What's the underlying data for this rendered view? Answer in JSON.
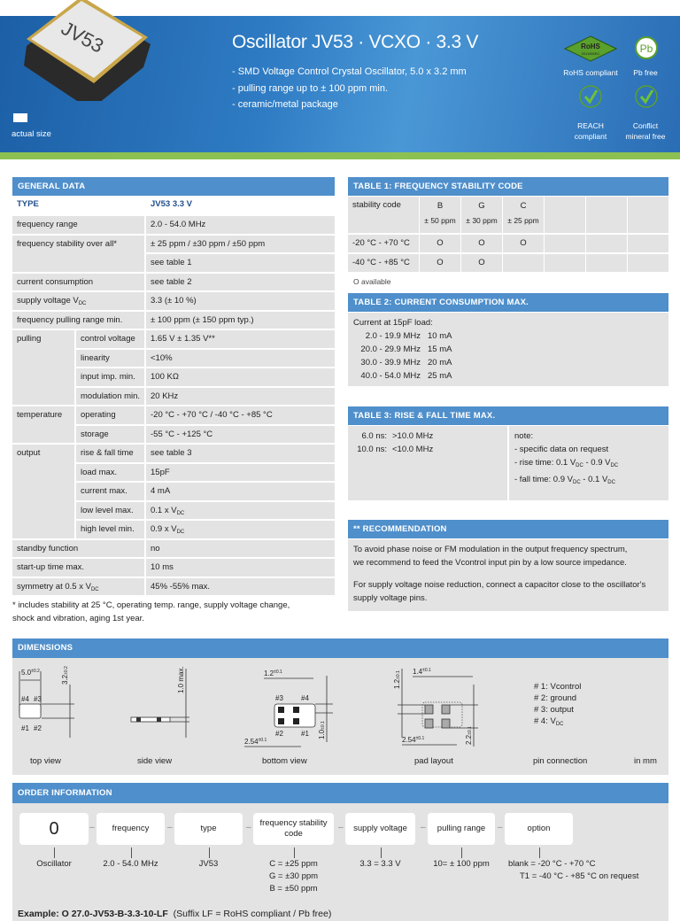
{
  "header": {
    "chip_marking": "JV53",
    "actual_size_label": "actual size",
    "title": "Oscillator JV53 · VCXO · 3.3 V",
    "bullets": [
      "- SMD Voltage Control Crystal Oscillator, 5.0 x 3.2 mm",
      "- pulling range up to ± 100 ppm min.",
      "- ceramic/metal package"
    ],
    "badges": {
      "rohs_logo_text": "RoHS",
      "rohs_logo_sub": "2011/65/EC",
      "rohs_label": "RoHS compliant",
      "pb_logo_text": "Pb",
      "pb_label": "Pb free",
      "reach_label_1": "REACH",
      "reach_label_2": "compliant",
      "conflict_label_1": "Conflict",
      "conflict_label_2": "mineral free"
    },
    "colors": {
      "banner": "#2f7cc4",
      "accent_bar": "#8cc152",
      "section_header": "#4f8fcb",
      "badge_green": "#5aa02c"
    }
  },
  "general": {
    "heading": "GENERAL DATA",
    "type_label": "TYPE",
    "type_value": "JV53 3.3 V",
    "rows": [
      {
        "label": "frequency range",
        "value": "2.0 - 54.0 MHz"
      },
      {
        "label": "frequency stability over all*",
        "value": "± 25 ppm / ±30 ppm / ±50 ppm"
      },
      {
        "label": "",
        "value": "see table 1"
      },
      {
        "label": "current consumption",
        "value": "see table 2"
      },
      {
        "label": "supply voltage V{DC}",
        "value": "3.3 (± 10 %)"
      },
      {
        "label": "frequency pulling range min.",
        "value": "± 100 ppm (± 150 ppm typ.)"
      }
    ],
    "groups": [
      {
        "label": "pulling",
        "rows": [
          {
            "sub": "control voltage",
            "value": "1.65 V ± 1.35 V**"
          },
          {
            "sub": "linearity",
            "value": "<10%"
          },
          {
            "sub": "input imp. min.",
            "value": "100 KΩ"
          },
          {
            "sub": "modulation min.",
            "value": "20 KHz"
          }
        ]
      },
      {
        "label": "temperature",
        "rows": [
          {
            "sub": "operating",
            "value": "-20 °C - +70 °C / -40 °C - +85 °C"
          },
          {
            "sub": "storage",
            "value": "-55 °C - +125 °C"
          }
        ]
      },
      {
        "label": "output",
        "rows": [
          {
            "sub": "rise & fall time",
            "value": "see table 3"
          },
          {
            "sub": "load max.",
            "value": "15pF"
          },
          {
            "sub": "current max.",
            "value": "4 mA"
          },
          {
            "sub": "low level max.",
            "value": "0.1 x V{DC}"
          },
          {
            "sub": "high level min.",
            "value": "0.9 x V{DC}"
          }
        ]
      }
    ],
    "rows_after": [
      {
        "label": "standby function",
        "value": "no"
      },
      {
        "label": "start-up time max.",
        "value": "10 ms"
      },
      {
        "label": "symmetry at 0.5 x V{DC}",
        "value": "45% -55% max."
      }
    ],
    "footnote_1": "* includes stability at 25 °C, operating temp. range, supply voltage change,",
    "footnote_2": "shock and vibration, aging 1st year."
  },
  "table1": {
    "heading": "TABLE 1: FREQUENCY STABILITY CODE",
    "row_header": "stability code",
    "codes": [
      {
        "code": "B",
        "ppm": "± 50 ppm"
      },
      {
        "code": "G",
        "ppm": "± 30 ppm"
      },
      {
        "code": "C",
        "ppm": "± 25 ppm"
      }
    ],
    "rows": [
      {
        "range": "-20 °C - +70 °C",
        "marks": [
          "O",
          "O",
          "O"
        ]
      },
      {
        "range": "-40 °C - +85 °C",
        "marks": [
          "O",
          "O",
          ""
        ]
      }
    ],
    "legend": "O available"
  },
  "table2": {
    "heading": "TABLE 2: CURRENT CONSUMPTION MAX.",
    "intro": "Current at 15pF load:",
    "rows": [
      {
        "range": "2.0 - 19.9 MHz",
        "current": "10 mA"
      },
      {
        "range": "20.0 - 29.9 MHz",
        "current": "15 mA"
      },
      {
        "range": "30.0 - 39.9 MHz",
        "current": "20 mA"
      },
      {
        "range": "40.0 - 54.0 MHz",
        "current": "25 mA"
      }
    ]
  },
  "table3": {
    "heading": "TABLE 3: RISE & FALL TIME MAX.",
    "rows": [
      {
        "time": "6.0 ns:",
        "freq": ">10.0 MHz"
      },
      {
        "time": "10.0 ns:",
        "freq": "<10.0 MHz"
      }
    ],
    "note_title": "note:",
    "notes": [
      "- specific data on request",
      "- rise time: 0.1 V{DC} - 0.9 V{DC}",
      "- fall time: 0.9 V{DC} - 0.1 V{DC}"
    ]
  },
  "recommendation": {
    "heading": "** RECOMMENDATION",
    "p1_1": "To avoid phase noise or FM modulation in the output frequency spectrum,",
    "p1_2": "we recommend to feed the Vcontrol input pin by a low source impedance.",
    "p2_1": "For supply voltage noise reduction, connect a capacitor close to the oscillator's",
    "p2_2": "supply voltage pins."
  },
  "dimensions": {
    "heading": "DIMENSIONS",
    "top": {
      "w": "5.0",
      "w_tol": "±0.2",
      "h": "3.2",
      "h_tol": "±0.2",
      "p1": "#1",
      "p2": "#2",
      "p3": "#3",
      "p4": "#4",
      "caption": "top view"
    },
    "side": {
      "h": "1.0 max.",
      "caption": "side view"
    },
    "bottom": {
      "a": "1.2",
      "a_tol": "±0.1",
      "b": "1.0",
      "b_tol": "±0.1",
      "c": "2.54",
      "c_tol": "±0.1",
      "p1": "#1",
      "p2": "#2",
      "p3": "#3",
      "p4": "#4",
      "caption": "bottom view"
    },
    "pad": {
      "a": "1.4",
      "a_tol": "±0.1",
      "b": "1.2",
      "b_tol": "±0.1",
      "c": "2.54",
      "c_tol": "±0.1",
      "d": "2.2",
      "d_tol": "±0.1",
      "caption": "pad layout"
    },
    "pins": [
      "# 1: Vcontrol",
      "# 2: ground",
      "# 3: output",
      "# 4: V{DC}"
    ],
    "pins_caption": "pin connection",
    "unit": "in mm"
  },
  "order": {
    "heading": "ORDER INFORMATION",
    "boxes": [
      "0",
      "frequency",
      "type",
      "frequency stability code",
      "supply voltage",
      "pulling range",
      "option"
    ],
    "values": [
      [
        "Oscillator"
      ],
      [
        "2.0 - 54.0 MHz"
      ],
      [
        "JV53"
      ],
      [
        "C = ±25 ppm",
        "G = ±30 ppm",
        "B = ±50 ppm"
      ],
      [
        "3.3 = 3.3 V"
      ],
      [
        "10= ± 100 ppm"
      ],
      [
        "blank = -20 °C - +70 °C",
        "T1 = -40 °C - +85 °C on request"
      ]
    ],
    "example_bold": "Example: O 27.0-JV53-B-3.3-10-LF",
    "example_note": "(Suffix LF = RoHS compliant / Pb free)"
  }
}
